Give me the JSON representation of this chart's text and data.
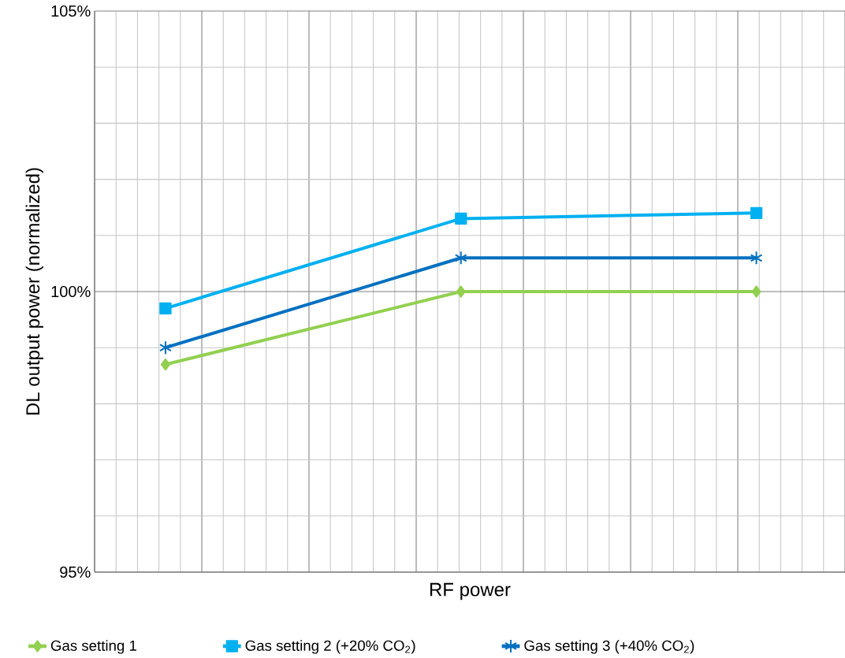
{
  "chart_data": {
    "type": "line",
    "xlabel": "RF power",
    "ylabel": "DL output power (normalized)",
    "categories": [
      null,
      null,
      null
    ],
    "ylim": [
      95,
      105
    ],
    "yticks": [
      {
        "value": 95,
        "label": "95%"
      },
      {
        "value": 100,
        "label": "100%"
      },
      {
        "value": 105,
        "label": "105%"
      }
    ],
    "tick_labels": "y",
    "grid": true,
    "legend": "bottom",
    "line_style": "solid",
    "series": [
      {
        "name": "Gas setting 1",
        "color": "#92d050",
        "marker": "diamond",
        "values": [
          98.7,
          100.0,
          100.0
        ]
      },
      {
        "name": "Gas setting 2 (+20% CO$_{2}$)",
        "color": "#00b0f0",
        "marker": "square",
        "values": [
          99.7,
          101.3,
          101.4
        ]
      },
      {
        "name": "Gas setting 3 (+40% CO$_{2}$)",
        "color": "#0070c0",
        "marker": "cross",
        "values": [
          99.0,
          100.6,
          100.6
        ]
      }
    ]
  }
}
